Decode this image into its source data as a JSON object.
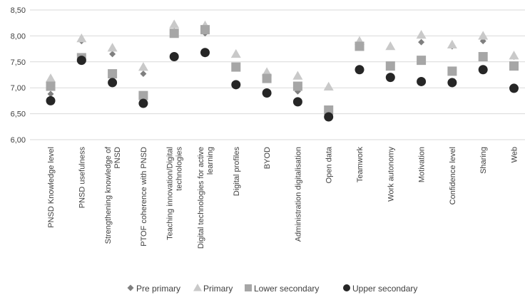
{
  "chart_data": {
    "type": "scatter",
    "title": "",
    "xlabel": "",
    "ylabel": "",
    "ylim": [
      6.0,
      8.5
    ],
    "yticks": [
      "6,00",
      "6,50",
      "7,00",
      "7,50",
      "8,00",
      "8,50"
    ],
    "grid": true,
    "legend_position": "bottom",
    "categories": [
      "PNSD Knowledge level",
      "PNSD usefulness",
      "Strengthening knowledge of PNSD",
      "PTOF coherence with PNSD",
      "Teaching innovation/Digital technologies",
      "Digital technologies for active learning",
      "Digital profiles",
      "BYOD",
      "Administration digitalisation",
      "Open data",
      "Teamwork",
      "Work autonomy",
      "Motivation",
      "Confidence level",
      "Sharing",
      "Web"
    ],
    "category_lines": [
      [
        "PNSD Knowledge level"
      ],
      [
        "PNSD usefulness"
      ],
      [
        "Strengthening knowledge of",
        "PNSD"
      ],
      [
        "PTOF coherence with PNSD"
      ],
      [
        "Teaching innovation/Digital",
        "technologies"
      ],
      [
        "Digital technologies for active",
        "learning"
      ],
      [
        "Digital profiles"
      ],
      [
        "BYOD"
      ],
      [
        "Administration digitalisation"
      ],
      [
        "Open data"
      ],
      [
        "Teamwork"
      ],
      [
        "Work autonomy"
      ],
      [
        "Motivation"
      ],
      [
        "Confidence level"
      ],
      [
        "Sharing"
      ],
      [
        "Web"
      ]
    ],
    "series": [
      {
        "name": "Pre primary",
        "marker": "diamond",
        "color": "#7f7f7f",
        "values": [
          6.88,
          7.9,
          7.65,
          7.27,
          8.2,
          8.05,
          7.42,
          7.2,
          6.93,
          6.6,
          7.85,
          7.4,
          7.88,
          7.8,
          7.9,
          7.6
        ]
      },
      {
        "name": "Primary",
        "marker": "triangle",
        "color": "#c9c9c9",
        "values": [
          7.18,
          7.95,
          7.77,
          7.4,
          8.22,
          8.2,
          7.65,
          7.3,
          7.23,
          7.02,
          7.9,
          7.8,
          8.02,
          7.83,
          8.0,
          7.62
        ]
      },
      {
        "name": "Lower secondary",
        "marker": "square",
        "color": "#a6a6a6",
        "values": [
          7.03,
          7.58,
          7.27,
          6.85,
          8.05,
          8.12,
          7.4,
          7.18,
          7.03,
          6.57,
          7.8,
          7.42,
          7.53,
          7.32,
          7.6,
          7.42
        ]
      },
      {
        "name": "Upper secondary",
        "marker": "circle",
        "color": "#262626",
        "values": [
          6.75,
          7.53,
          7.1,
          6.7,
          7.6,
          7.68,
          7.06,
          6.9,
          6.73,
          6.44,
          7.35,
          7.2,
          7.12,
          7.1,
          7.35,
          6.99
        ]
      }
    ]
  }
}
